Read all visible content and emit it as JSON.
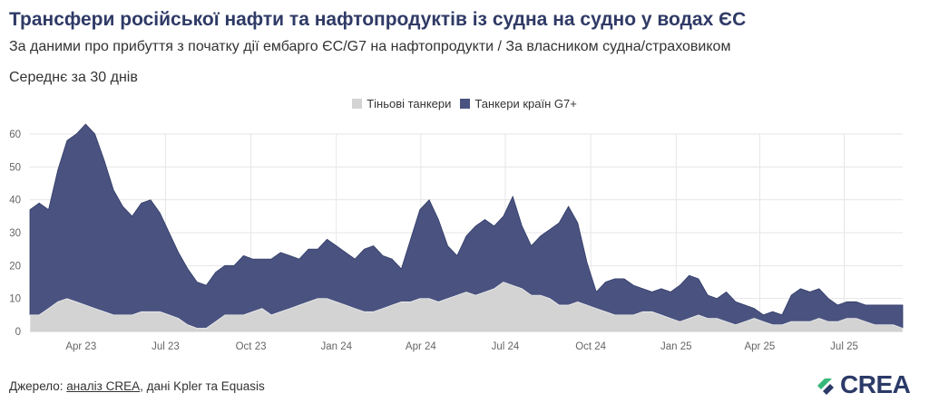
{
  "header": {
    "title": "Трансфери російської нафти та нафтопродуктів із судна на судно у водах ЄС",
    "subtitle": "За даними про прибуття з початку дії ембарго ЄС/G7 на нафтопродукти / За власником судна/страховиком",
    "note": "Середнє за 30 днів"
  },
  "footer": {
    "source_prefix": "Джерело: ",
    "source_link": "аналіз CREA",
    "source_suffix": ", дані Kpler та Equasis"
  },
  "logo": {
    "text": "CREA",
    "colors": [
      "#2b3a67",
      "#35b779"
    ]
  },
  "colors": {
    "shadow": "#d3d3d3",
    "g7": "#4a5380",
    "grid": "#e6e6e6",
    "axis_text": "#666666"
  },
  "chart_data": {
    "type": "area",
    "stacked": true,
    "title": "Трансфери російської нафти та нафтопродуктів із судна на судно у водах ЄС",
    "ylim": [
      0,
      60
    ],
    "yticks": [
      0,
      10,
      20,
      30,
      40,
      50,
      60
    ],
    "xticks": [
      {
        "date": "2023-04-01",
        "label": "Apr 23"
      },
      {
        "date": "2023-07-01",
        "label": "Jul 23"
      },
      {
        "date": "2023-10-01",
        "label": "Oct 23"
      },
      {
        "date": "2024-01-01",
        "label": "Jan 24"
      },
      {
        "date": "2024-04-01",
        "label": "Apr 24"
      },
      {
        "date": "2024-07-01",
        "label": "Jul 24"
      },
      {
        "date": "2024-10-01",
        "label": "Oct 24"
      },
      {
        "date": "2025-01-01",
        "label": "Jan 25"
      },
      {
        "date": "2025-04-01",
        "label": "Apr 25"
      },
      {
        "date": "2025-07-01",
        "label": "Jul 25"
      }
    ],
    "grid": true,
    "legend": "top-center",
    "x": [
      "2023-02-05",
      "2023-02-15",
      "2023-02-25",
      "2023-03-07",
      "2023-03-17",
      "2023-03-27",
      "2023-04-06",
      "2023-04-16",
      "2023-04-26",
      "2023-05-06",
      "2023-05-16",
      "2023-05-26",
      "2023-06-05",
      "2023-06-15",
      "2023-06-25",
      "2023-07-05",
      "2023-07-15",
      "2023-07-25",
      "2023-08-04",
      "2023-08-14",
      "2023-08-24",
      "2023-09-03",
      "2023-09-13",
      "2023-09-23",
      "2023-10-03",
      "2023-10-13",
      "2023-10-23",
      "2023-11-02",
      "2023-11-12",
      "2023-11-22",
      "2023-12-02",
      "2023-12-12",
      "2023-12-22",
      "2024-01-01",
      "2024-01-11",
      "2024-01-21",
      "2024-01-31",
      "2024-02-10",
      "2024-02-20",
      "2024-03-01",
      "2024-03-11",
      "2024-03-21",
      "2024-03-31",
      "2024-04-10",
      "2024-04-20",
      "2024-04-30",
      "2024-05-10",
      "2024-05-20",
      "2024-05-30",
      "2024-06-09",
      "2024-06-19",
      "2024-06-29",
      "2024-07-09",
      "2024-07-19",
      "2024-07-29",
      "2024-08-08",
      "2024-08-18",
      "2024-08-28",
      "2024-09-07",
      "2024-09-17",
      "2024-09-27",
      "2024-10-07",
      "2024-10-17",
      "2024-10-27",
      "2024-11-06",
      "2024-11-16",
      "2024-11-26",
      "2024-12-06",
      "2024-12-16",
      "2024-12-26",
      "2025-01-05",
      "2025-01-15",
      "2025-01-25",
      "2025-02-04",
      "2025-02-14",
      "2025-02-24",
      "2025-03-06",
      "2025-03-16",
      "2025-03-26",
      "2025-04-05",
      "2025-04-15",
      "2025-04-25",
      "2025-05-05",
      "2025-05-15",
      "2025-05-25",
      "2025-06-04",
      "2025-06-14",
      "2025-06-24",
      "2025-07-04",
      "2025-07-14",
      "2025-07-24",
      "2025-08-03",
      "2025-08-13",
      "2025-08-23",
      "2025-09-02"
    ],
    "series": [
      {
        "name": "Тіньові танкери",
        "values": [
          5,
          5,
          7,
          9,
          10,
          9,
          8,
          7,
          6,
          5,
          5,
          5,
          6,
          6,
          6,
          5,
          4,
          2,
          1,
          1,
          3,
          5,
          5,
          5,
          6,
          7,
          5,
          6,
          7,
          8,
          9,
          10,
          10,
          9,
          8,
          7,
          6,
          6,
          7,
          8,
          9,
          9,
          10,
          10,
          9,
          10,
          11,
          12,
          11,
          12,
          13,
          15,
          14,
          13,
          11,
          11,
          10,
          8,
          8,
          9,
          8,
          7,
          6,
          5,
          5,
          5,
          6,
          6,
          5,
          4,
          3,
          4,
          5,
          4,
          4,
          3,
          2,
          3,
          4,
          3,
          2,
          2,
          3,
          3,
          3,
          4,
          3,
          3,
          4,
          4,
          3,
          2,
          2,
          2,
          1
        ]
      },
      {
        "name": "Танкери країн G7+",
        "values": [
          32,
          34,
          30,
          40,
          48,
          51,
          55,
          53,
          46,
          38,
          33,
          30,
          33,
          34,
          30,
          25,
          20,
          17,
          14,
          13,
          15,
          15,
          15,
          18,
          16,
          15,
          17,
          18,
          16,
          14,
          16,
          15,
          18,
          17,
          16,
          15,
          19,
          20,
          16,
          14,
          10,
          19,
          27,
          30,
          25,
          16,
          12,
          17,
          21,
          22,
          19,
          20,
          27,
          19,
          15,
          18,
          21,
          25,
          30,
          24,
          13,
          5,
          9,
          11,
          11,
          9,
          7,
          6,
          8,
          8,
          11,
          13,
          11,
          7,
          6,
          9,
          7,
          5,
          3,
          2,
          4,
          3,
          8,
          10,
          9,
          9,
          7,
          5,
          5,
          5,
          5,
          6,
          6,
          6,
          7
        ]
      }
    ]
  }
}
